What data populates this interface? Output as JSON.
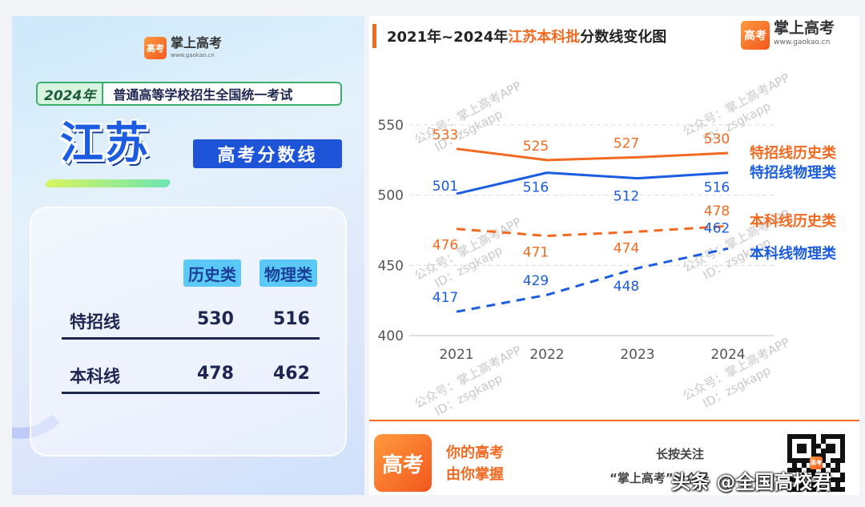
{
  "poster": {
    "brand_name": "掌上高考",
    "brand_url": "www.gaokao.cn",
    "logo_text": "高考",
    "exam_year": "2024年",
    "exam_title": "普通高等学校招生全国统一考试",
    "province": "江苏",
    "subtitle": "高考分数线",
    "table": {
      "headers": [
        "历史类",
        "物理类"
      ],
      "rows": [
        {
          "label": "特招线",
          "history": "530",
          "physics": "516"
        },
        {
          "label": "本科线",
          "history": "478",
          "physics": "462"
        }
      ]
    }
  },
  "chart_header": {
    "title_part1": "2021年~2024年",
    "title_highlight": "江苏本科批",
    "title_part2": "分数线变化图",
    "brand_name": "掌上高考",
    "brand_url": "www.gaokao.cn"
  },
  "chart_data": {
    "type": "line",
    "categories": [
      "2021",
      "2022",
      "2023",
      "2024"
    ],
    "ylim": [
      400,
      550
    ],
    "yticks": [
      400,
      450,
      500,
      550
    ],
    "grid": true,
    "series": [
      {
        "name": "特招线历史类",
        "values": [
          533,
          525,
          527,
          530
        ],
        "color": "#f26a21",
        "dashed": false
      },
      {
        "name": "特招线物理类",
        "values": [
          501,
          516,
          512,
          516
        ],
        "color": "#1b5ce0",
        "dashed": false
      },
      {
        "name": "本科线历史类",
        "values": [
          476,
          471,
          474,
          478
        ],
        "color": "#f26a21",
        "dashed": true
      },
      {
        "name": "本科线物理类",
        "values": [
          417,
          429,
          448,
          462
        ],
        "color": "#1b5ce0",
        "dashed": true
      }
    ]
  },
  "watermark": {
    "line1": "公众号：掌上高考APP",
    "line2": "ID：zsgkapp"
  },
  "footer": {
    "logo_text": "高考",
    "slogan_line1": "你的高考",
    "slogan_line2": "由你掌握",
    "follow_line1": "长按关注",
    "follow_line2": "“掌上高考”公众号",
    "qr_logo_text": "高考"
  },
  "page_watermark": "头条 @全国高校君"
}
